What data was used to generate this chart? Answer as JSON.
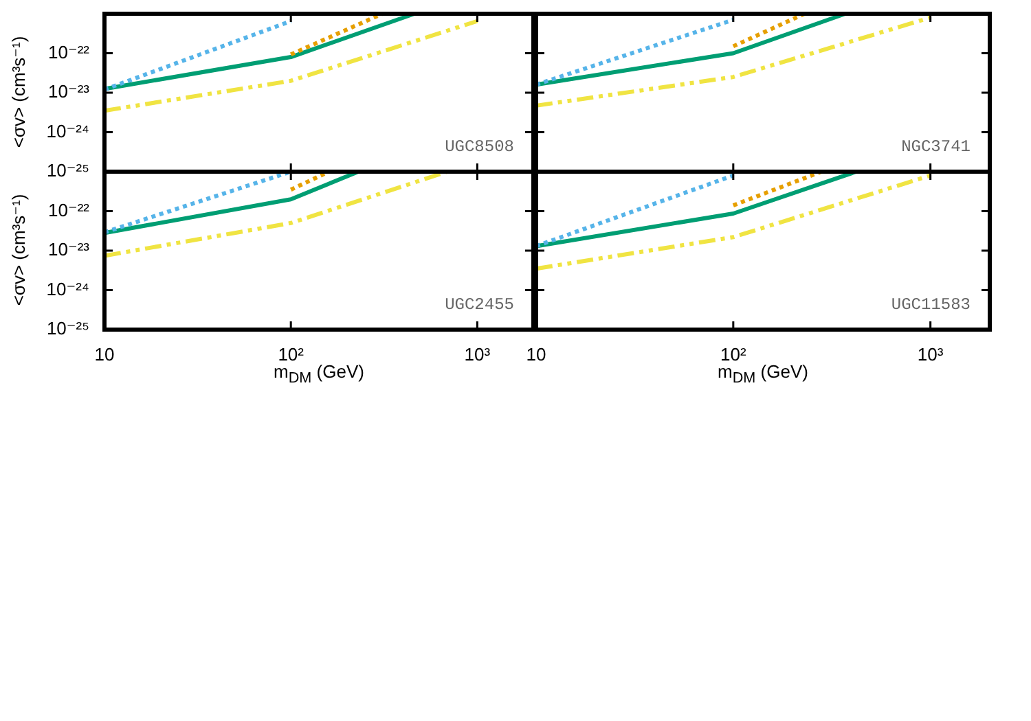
{
  "chart_data": [
    {
      "type": "line",
      "ylabel": "<σv> (cm³s⁻¹)",
      "log": "xy",
      "xlim": [
        10,
        2000
      ],
      "ylim": [
        1e-25,
        1e-21
      ],
      "xticks": [
        {
          "value": 10,
          "label": null
        },
        {
          "value": 100,
          "label": null
        },
        {
          "value": 1000,
          "label": null
        }
      ],
      "yticks": [
        {
          "value": 1e-25,
          "label": "10⁻²⁵"
        },
        {
          "value": 1e-24,
          "label": "10⁻²⁴"
        },
        {
          "value": 1e-23,
          "label": "10⁻²³"
        },
        {
          "value": 1e-22,
          "label": "10⁻²²"
        }
      ],
      "tick_labels": "y",
      "annotations": [
        "UGC8508"
      ],
      "series": [
        {
          "color": "#56b4e9",
          "line_style": "dotted",
          "x": [
            10,
            100
          ],
          "values": [
            1.2e-23,
            6.5e-22
          ]
        },
        {
          "color": "#e69f00",
          "line_style": "dotted",
          "x": [
            100,
            310
          ],
          "values": [
            9.3e-23,
            1e-21
          ]
        },
        {
          "color": "#009e73",
          "line_style": "solid",
          "x": [
            10,
            100,
            460
          ],
          "values": [
            1.25e-23,
            8e-23,
            1e-21
          ]
        },
        {
          "color": "#f0e442",
          "line_style": "dashed",
          "x": [
            10,
            100,
            1000
          ],
          "values": [
            3.5e-24,
            2e-23,
            6.5e-22
          ]
        }
      ]
    },
    {
      "type": "line",
      "log": "xy",
      "xlim": [
        10,
        2000
      ],
      "ylim": [
        1e-25,
        1e-21
      ],
      "xticks": [
        {
          "value": 10,
          "label": null
        },
        {
          "value": 100,
          "label": null
        },
        {
          "value": 1000,
          "label": null
        }
      ],
      "yticks": [
        {
          "value": 1e-25,
          "label": null
        },
        {
          "value": 1e-24,
          "label": null
        },
        {
          "value": 1e-23,
          "label": null
        },
        {
          "value": 1e-22,
          "label": null
        }
      ],
      "tick_labels": false,
      "annotations": [
        "NGC3741"
      ],
      "series": [
        {
          "color": "#56b4e9",
          "line_style": "dotted",
          "x": [
            10,
            100
          ],
          "values": [
            1.6e-23,
            7e-22
          ]
        },
        {
          "color": "#e69f00",
          "line_style": "dotted",
          "x": [
            100,
            230
          ],
          "values": [
            1.5e-22,
            1e-21
          ]
        },
        {
          "color": "#009e73",
          "line_style": "solid",
          "x": [
            10,
            100,
            370
          ],
          "values": [
            1.6e-23,
            1e-22,
            1e-21
          ]
        },
        {
          "color": "#f0e442",
          "line_style": "dashed",
          "x": [
            10,
            100,
            1000
          ],
          "values": [
            4.7e-24,
            2.5e-23,
            8e-22
          ]
        }
      ]
    },
    {
      "type": "line",
      "xlabel": "m$_{DM}$ (GeV)",
      "ylabel": "<σv> (cm³s⁻¹)",
      "log": "xy",
      "xlim": [
        10,
        2000
      ],
      "ylim": [
        1e-25,
        1e-21
      ],
      "xticks": [
        {
          "value": 10,
          "label": "10"
        },
        {
          "value": 100,
          "label": "10²"
        },
        {
          "value": 1000,
          "label": "10³"
        }
      ],
      "yticks": [
        {
          "value": 1e-25,
          "label": "10⁻²⁵"
        },
        {
          "value": 1e-24,
          "label": "10⁻²⁴"
        },
        {
          "value": 1e-23,
          "label": "10⁻²³"
        },
        {
          "value": 1e-22,
          "label": "10⁻²²"
        }
      ],
      "annotations": [
        "UGC2455"
      ],
      "series": [
        {
          "color": "#56b4e9",
          "line_style": "dotted",
          "x": [
            10,
            100
          ],
          "values": [
            2.9e-23,
            1e-21
          ]
        },
        {
          "color": "#e69f00",
          "line_style": "dotted",
          "x": [
            100,
            160
          ],
          "values": [
            3.5e-22,
            1e-21
          ]
        },
        {
          "color": "#009e73",
          "line_style": "solid",
          "x": [
            10,
            100,
            230
          ],
          "values": [
            2.8e-23,
            2e-22,
            1e-21
          ]
        },
        {
          "color": "#f0e442",
          "line_style": "dashed",
          "x": [
            10,
            100,
            690
          ],
          "values": [
            7.4e-24,
            5e-23,
            1e-21
          ]
        }
      ]
    },
    {
      "type": "line",
      "xlabel": "m$_{DM}$ (GeV)",
      "log": "xy",
      "xlim": [
        10,
        2000
      ],
      "ylim": [
        1e-25,
        1e-21
      ],
      "xticks": [
        {
          "value": 10,
          "label": "10"
        },
        {
          "value": 100,
          "label": "10²"
        },
        {
          "value": 1000,
          "label": "10³"
        }
      ],
      "yticks": [
        {
          "value": 1e-25,
          "label": null
        },
        {
          "value": 1e-24,
          "label": null
        },
        {
          "value": 1e-23,
          "label": null
        },
        {
          "value": 1e-22,
          "label": null
        }
      ],
      "tick_labels": "x",
      "annotations": [
        "UGC11583"
      ],
      "series": [
        {
          "color": "#56b4e9",
          "line_style": "dotted",
          "x": [
            10,
            100
          ],
          "values": [
            1.3e-23,
            8e-22
          ]
        },
        {
          "color": "#e69f00",
          "line_style": "dotted",
          "x": [
            100,
            280
          ],
          "values": [
            1.4e-22,
            1e-21
          ]
        },
        {
          "color": "#009e73",
          "line_style": "solid",
          "x": [
            10,
            100,
            420
          ],
          "values": [
            1.3e-23,
            8.7e-23,
            1e-21
          ]
        },
        {
          "color": "#f0e442",
          "line_style": "dashed",
          "x": [
            10,
            100,
            1000
          ],
          "values": [
            3.5e-24,
            2.2e-23,
            8e-22
          ]
        }
      ]
    }
  ]
}
